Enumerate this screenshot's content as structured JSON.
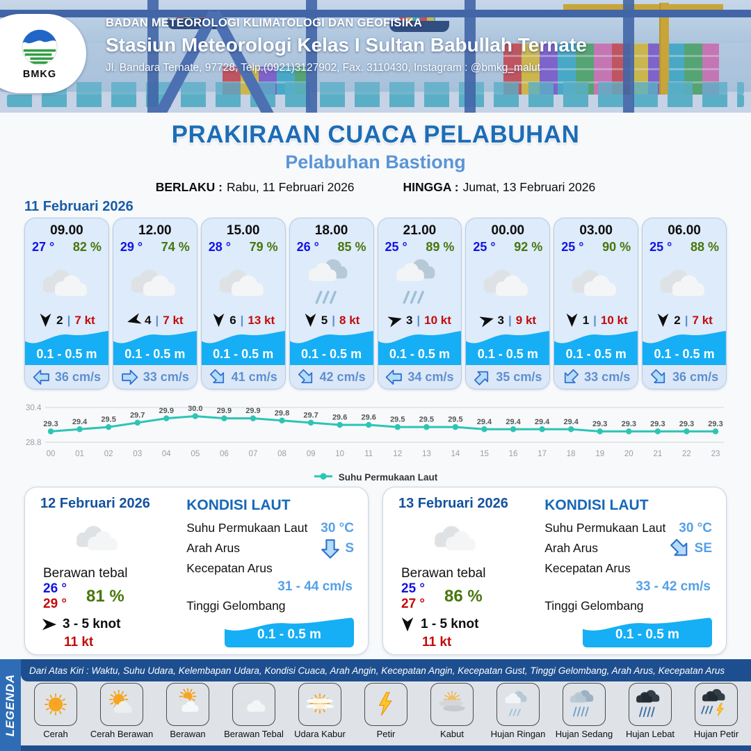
{
  "header": {
    "agency": "BADAN METEOROLOGI KLIMATOLOGI DAN GEOFISIKA",
    "station": "Stasiun Meteorologi Kelas I Sultan Babullah Ternate",
    "address": "Jl. Bandara Ternate, 97728, Telp.(0921)3127902, Fax. 3110430, Instagram : @bmkg_malut",
    "logo_text": "BMKG"
  },
  "title": {
    "main": "PRAKIRAAN CUACA PELABUHAN",
    "subtitle": "Pelabuhan Bastiong",
    "berlaku_label": "BERLAKU :",
    "berlaku_value": "Rabu, 11 Februari 2026",
    "hingga_label": "HINGGA :",
    "hingga_value": "Jumat, 13 Februari 2026"
  },
  "day1": {
    "date_label": "11 Februari 2026",
    "cards": [
      {
        "time": "09.00",
        "temp": "27 °",
        "humidity": "82 %",
        "icon": "berawan-tebal",
        "wind_deg": 180,
        "wind_speed": "2",
        "gust": "7 kt",
        "wave": "0.1 - 0.5 m",
        "current_deg": 270,
        "current": "36 cm/s"
      },
      {
        "time": "12.00",
        "temp": "29 °",
        "humidity": "74 %",
        "icon": "berawan-tebal",
        "wind_deg": 255,
        "wind_speed": "4",
        "gust": "7 kt",
        "wave": "0.1 - 0.5 m",
        "current_deg": 90,
        "current": "33 cm/s"
      },
      {
        "time": "15.00",
        "temp": "28 °",
        "humidity": "79 %",
        "icon": "berawan-tebal",
        "wind_deg": 180,
        "wind_speed": "6",
        "gust": "13 kt",
        "wave": "0.1 - 0.5 m",
        "current_deg": 135,
        "current": "41 cm/s"
      },
      {
        "time": "18.00",
        "temp": "26 °",
        "humidity": "85 %",
        "icon": "hujan-ringan",
        "wind_deg": 180,
        "wind_speed": "5",
        "gust": "8 kt",
        "wave": "0.1 - 0.5 m",
        "current_deg": 135,
        "current": "42 cm/s"
      },
      {
        "time": "21.00",
        "temp": "25 °",
        "humidity": "89 %",
        "icon": "hujan-ringan",
        "wind_deg": 75,
        "wind_speed": "3",
        "gust": "10 kt",
        "wave": "0.1 - 0.5 m",
        "current_deg": 270,
        "current": "34 cm/s"
      },
      {
        "time": "00.00",
        "temp": "25 °",
        "humidity": "92 %",
        "icon": "berawan-tebal",
        "wind_deg": 75,
        "wind_speed": "3",
        "gust": "9 kt",
        "wave": "0.1 - 0.5 m",
        "current_deg": 45,
        "current": "35 cm/s"
      },
      {
        "time": "03.00",
        "temp": "25 °",
        "humidity": "90 %",
        "icon": "berawan-tebal",
        "wind_deg": 180,
        "wind_speed": "1",
        "gust": "10 kt",
        "wave": "0.1 - 0.5 m",
        "current_deg": 225,
        "current": "33 cm/s"
      },
      {
        "time": "06.00",
        "temp": "25 °",
        "humidity": "88 %",
        "icon": "berawan-tebal",
        "wind_deg": 180,
        "wind_speed": "2",
        "gust": "7 kt",
        "wave": "0.1 - 0.5 m",
        "current_deg": 135,
        "current": "36 cm/s"
      }
    ]
  },
  "chart_data": {
    "type": "line",
    "title": "",
    "xlabel": "",
    "ylabel": "",
    "x": [
      "00",
      "01",
      "02",
      "03",
      "04",
      "05",
      "06",
      "07",
      "08",
      "09",
      "10",
      "11",
      "12",
      "13",
      "14",
      "15",
      "16",
      "17",
      "18",
      "19",
      "20",
      "21",
      "22",
      "23"
    ],
    "series": [
      {
        "name": "Suhu Permukaan Laut",
        "values": [
          29.3,
          29.4,
          29.5,
          29.7,
          29.9,
          30.0,
          29.9,
          29.9,
          29.8,
          29.7,
          29.6,
          29.6,
          29.5,
          29.5,
          29.5,
          29.4,
          29.4,
          29.4,
          29.4,
          29.3,
          29.3,
          29.3,
          29.3,
          29.3
        ]
      }
    ],
    "ylim": [
      28.8,
      30.4
    ],
    "yticks": [
      28.8,
      30.4
    ],
    "grid": true,
    "legend_position": "bottom",
    "line_color": "#2ec4b4"
  },
  "daily": [
    {
      "date": "12 Februari 2026",
      "icon": "berawan-tebal",
      "condition": "Berawan tebal",
      "temp_min": "26 °",
      "temp_max": "29 °",
      "humidity": "81 %",
      "wind_deg": 90,
      "wind_range": "3 - 5 knot",
      "gust": "11 kt",
      "sea": {
        "title": "KONDISI LAUT",
        "sst_label": "Suhu Permukaan Laut",
        "sst": "30 °C",
        "current_dir_label": "Arah Arus",
        "current_deg": 180,
        "current_dir": "S",
        "current_speed_label": "Kecepatan Arus",
        "current_speed": "31 - 44 cm/s",
        "wave_label": "Tinggi Gelombang",
        "wave": "0.1 - 0.5 m"
      }
    },
    {
      "date": "13 Februari 2026",
      "icon": "berawan-tebal",
      "condition": "Berawan tebal",
      "temp_min": "25 °",
      "temp_max": "27 °",
      "humidity": "86 %",
      "wind_deg": 180,
      "wind_range": "1 - 5 knot",
      "gust": "11 kt",
      "sea": {
        "title": "KONDISI LAUT",
        "sst_label": "Suhu Permukaan Laut",
        "sst": "30 °C",
        "current_dir_label": "Arah Arus",
        "current_deg": 135,
        "current_dir": "SE",
        "current_speed_label": "Kecepatan Arus",
        "current_speed": "33 - 42 cm/s",
        "wave_label": "Tinggi Gelombang",
        "wave": "0.1 - 0.5 m"
      }
    }
  ],
  "legend": {
    "side_label": "LEGENDA",
    "note": "Dari Atas Kiri : Waktu, Suhu Udara, Kelembapan Udara, Kondisi Cuaca, Arah Angin, Kecepatan Angin, Kecepatan Gust, Tinggi Gelombang, Arah Arus, Kecepatan Arus",
    "items": [
      {
        "icon": "cerah",
        "label": "Cerah"
      },
      {
        "icon": "cerah-berawan",
        "label": "Cerah Berawan"
      },
      {
        "icon": "berawan",
        "label": "Berawan"
      },
      {
        "icon": "berawan-tebal",
        "label": "Berawan Tebal"
      },
      {
        "icon": "udara-kabur",
        "label": "Udara Kabur"
      },
      {
        "icon": "petir",
        "label": "Petir"
      },
      {
        "icon": "kabut",
        "label": "Kabut"
      },
      {
        "icon": "hujan-ringan",
        "label": "Hujan Ringan"
      },
      {
        "icon": "hujan-sedang",
        "label": "Hujan Sedang"
      },
      {
        "icon": "hujan-lebat",
        "label": "Hujan Lebat"
      },
      {
        "icon": "hujan-petir",
        "label": "Hujan Petir"
      }
    ]
  },
  "colors": {
    "title_blue": "#1e6cb5",
    "subtitle_blue": "#5b95d6",
    "temp_blue": "#1212e2",
    "humidity_green": "#47760a",
    "gust_red": "#c40a0a",
    "wave_blue": "#16aef4",
    "current_text_blue": "#5d8fd2",
    "chart_line_teal": "#2ec4b4",
    "legend_bar_blue": "#1d4f90",
    "legend_side_blue": "#2e6db6"
  }
}
